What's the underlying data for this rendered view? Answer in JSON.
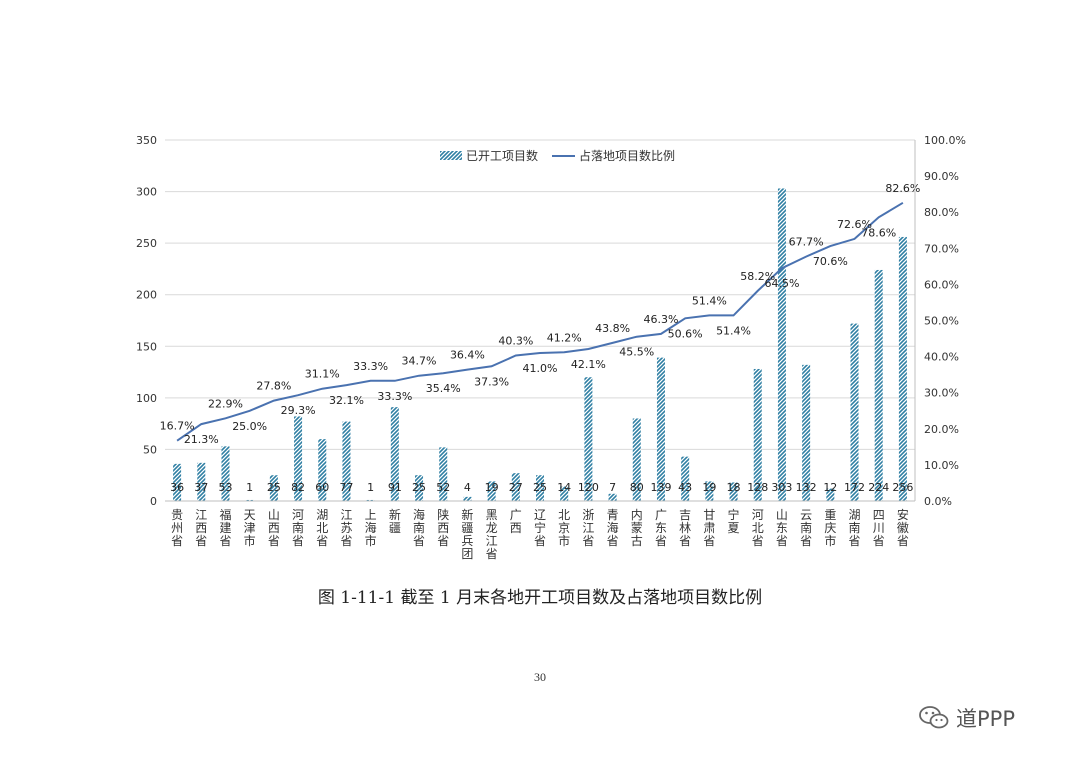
{
  "chart_data": {
    "type": "bar+line",
    "categories": [
      "贵州省",
      "江西省",
      "福建省",
      "天津市",
      "山西省",
      "河南省",
      "湖北省",
      "江苏省",
      "上海市",
      "新疆",
      "海南省",
      "陕西省",
      "新疆兵团",
      "黑龙江省",
      "广西",
      "辽宁省",
      "北京市",
      "浙江省",
      "青海省",
      "内蒙古",
      "广东省",
      "吉林省",
      "甘肃省",
      "宁夏",
      "河北省",
      "山东省",
      "云南省",
      "重庆市",
      "湖南省",
      "四川省",
      "安徽省"
    ],
    "bar_series": {
      "name": "已开工项目数",
      "values": [
        36,
        37,
        53,
        1,
        25,
        82,
        60,
        77,
        1,
        91,
        25,
        52,
        4,
        19,
        27,
        25,
        14,
        120,
        7,
        80,
        139,
        43,
        19,
        18,
        128,
        303,
        132,
        12,
        172,
        224,
        256
      ]
    },
    "line_series": {
      "name": "占落地项目数比例",
      "values": [
        16.7,
        21.3,
        22.9,
        25.0,
        27.8,
        29.3,
        31.1,
        32.1,
        33.3,
        33.3,
        34.7,
        35.4,
        36.4,
        37.3,
        40.3,
        41.0,
        41.2,
        42.1,
        43.8,
        45.5,
        46.3,
        50.6,
        51.4,
        51.4,
        58.2,
        64.5,
        67.7,
        70.6,
        72.6,
        78.6,
        82.6
      ]
    },
    "line_labels": [
      "16.7%",
      "21.3%",
      "22.9%",
      "25.0%",
      "27.8%",
      "29.3%",
      "31.1%",
      "32.1%",
      "33.3%",
      "33.3%",
      "34.7%",
      "35.4%",
      "36.4%",
      "37.3%",
      "40.3%",
      "41.0%",
      "41.2%",
      "42.1%",
      "43.8%",
      "45.5%",
      "46.3%",
      "50.6%",
      "51.4%",
      "51.4%",
      "58.2%",
      "64.5%",
      "67.7%",
      "70.6%",
      "72.6%",
      "78.6%",
      "82.6%"
    ],
    "y_left": {
      "range": [
        0,
        350
      ],
      "ticks": [
        0,
        50,
        100,
        150,
        200,
        250,
        300,
        350
      ]
    },
    "y_right": {
      "range": [
        0,
        100
      ],
      "tick_labels": [
        "0.0%",
        "10.0%",
        "20.0%",
        "30.0%",
        "40.0%",
        "50.0%",
        "60.0%",
        "70.0%",
        "80.0%",
        "90.0%",
        "100.0%"
      ]
    },
    "legend_position": "top-center",
    "grid": true
  },
  "caption": "图 1-11-1   截至 1 月末各地开工项目数及占落地项目数比例",
  "page_number": "30",
  "watermark": "道PPP",
  "colors": {
    "bar": "#2f7fa3",
    "line": "#4a72b0",
    "grid": "#d9d9d9",
    "text": "#333333"
  }
}
